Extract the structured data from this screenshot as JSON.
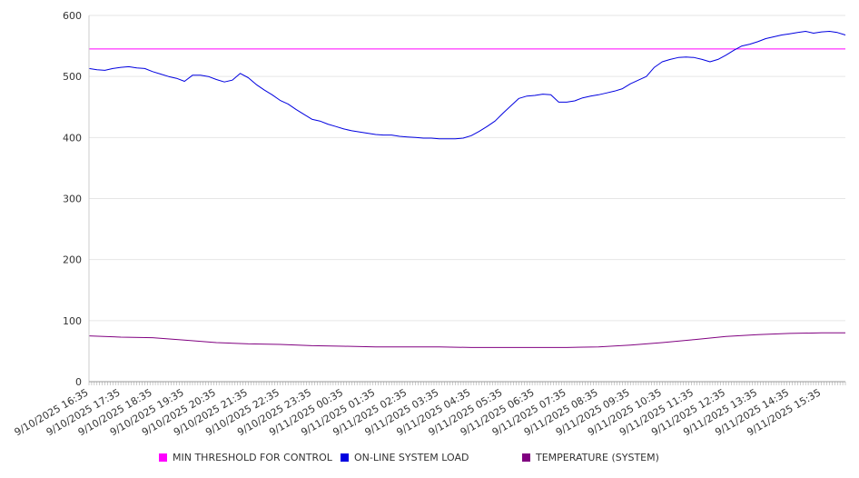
{
  "chart_data": {
    "type": "line",
    "title": "",
    "xlabel": "",
    "ylabel": "",
    "ylim": [
      0,
      600
    ],
    "yticks": [
      "0",
      "100",
      "200",
      "300",
      "400",
      "500",
      "600"
    ],
    "xticks": [
      "9/10/2025 16:35",
      "9/10/2025 17:35",
      "9/10/2025 18:35",
      "9/10/2025 19:35",
      "9/10/2025 20:35",
      "9/10/2025 21:35",
      "9/10/2025 22:35",
      "9/10/2025 23:35",
      "9/11/2025 00:35",
      "9/11/2025 01:35",
      "9/11/2025 02:35",
      "9/11/2025 03:35",
      "9/11/2025 04:35",
      "9/11/2025 05:35",
      "9/11/2025 06:35",
      "9/11/2025 07:35",
      "9/11/2025 08:35",
      "9/11/2025 09:35",
      "9/11/2025 10:35",
      "9/11/2025 11:35",
      "9/11/2025 12:35",
      "9/11/2025 13:35",
      "9/11/2025 14:35",
      "9/11/2025 15:35"
    ],
    "grid": true,
    "legend_position": "bottom",
    "series": [
      {
        "name": "MIN THRESHOLD FOR CONTROL",
        "color": "#ff00ff",
        "x": [
          "9/10/2025 16:35",
          "9/11/2025 16:20"
        ],
        "values": [
          545,
          545
        ]
      },
      {
        "name": "ON-LINE SYSTEM LOAD",
        "color": "#0000e0",
        "x": [
          "9/10/2025 16:35",
          "9/10/2025 16:50",
          "9/10/2025 17:05",
          "9/10/2025 17:20",
          "9/10/2025 17:35",
          "9/10/2025 17:50",
          "9/10/2025 18:05",
          "9/10/2025 18:20",
          "9/10/2025 18:35",
          "9/10/2025 18:50",
          "9/10/2025 19:05",
          "9/10/2025 19:20",
          "9/10/2025 19:35",
          "9/10/2025 19:50",
          "9/10/2025 20:05",
          "9/10/2025 20:20",
          "9/10/2025 20:35",
          "9/10/2025 20:50",
          "9/10/2025 21:05",
          "9/10/2025 21:20",
          "9/10/2025 21:35",
          "9/10/2025 21:50",
          "9/10/2025 22:05",
          "9/10/2025 22:20",
          "9/10/2025 22:35",
          "9/10/2025 22:50",
          "9/10/2025 23:05",
          "9/10/2025 23:20",
          "9/10/2025 23:35",
          "9/10/2025 23:50",
          "9/11/2025 00:05",
          "9/11/2025 00:20",
          "9/11/2025 00:35",
          "9/11/2025 00:50",
          "9/11/2025 01:05",
          "9/11/2025 01:20",
          "9/11/2025 01:35",
          "9/11/2025 01:50",
          "9/11/2025 02:05",
          "9/11/2025 02:20",
          "9/11/2025 02:35",
          "9/11/2025 02:50",
          "9/11/2025 03:05",
          "9/11/2025 03:20",
          "9/11/2025 03:35",
          "9/11/2025 03:50",
          "9/11/2025 04:05",
          "9/11/2025 04:20",
          "9/11/2025 04:35",
          "9/11/2025 04:50",
          "9/11/2025 05:05",
          "9/11/2025 05:20",
          "9/11/2025 05:35",
          "9/11/2025 05:50",
          "9/11/2025 06:05",
          "9/11/2025 06:20",
          "9/11/2025 06:35",
          "9/11/2025 06:50",
          "9/11/2025 07:05",
          "9/11/2025 07:20",
          "9/11/2025 07:35",
          "9/11/2025 07:50",
          "9/11/2025 08:05",
          "9/11/2025 08:20",
          "9/11/2025 08:35",
          "9/11/2025 08:50",
          "9/11/2025 09:05",
          "9/11/2025 09:20",
          "9/11/2025 09:35",
          "9/11/2025 09:50",
          "9/11/2025 10:05",
          "9/11/2025 10:20",
          "9/11/2025 10:35",
          "9/11/2025 10:50",
          "9/11/2025 11:05",
          "9/11/2025 11:20",
          "9/11/2025 11:35",
          "9/11/2025 11:50",
          "9/11/2025 12:05",
          "9/11/2025 12:20",
          "9/11/2025 12:35",
          "9/11/2025 12:50",
          "9/11/2025 13:05",
          "9/11/2025 13:20",
          "9/11/2025 13:35",
          "9/11/2025 13:50",
          "9/11/2025 14:05",
          "9/11/2025 14:20",
          "9/11/2025 14:35",
          "9/11/2025 14:50",
          "9/11/2025 15:05",
          "9/11/2025 15:20",
          "9/11/2025 15:35",
          "9/11/2025 15:50",
          "9/11/2025 16:05",
          "9/11/2025 16:20"
        ],
        "values": [
          513,
          511,
          510,
          513,
          515,
          516,
          514,
          513,
          508,
          504,
          500,
          497,
          492,
          502,
          502,
          500,
          495,
          491,
          494,
          505,
          498,
          487,
          478,
          470,
          461,
          455,
          446,
          438,
          430,
          427,
          422,
          418,
          414,
          411,
          409,
          407,
          405,
          404,
          404,
          402,
          401,
          400,
          399,
          399,
          398,
          398,
          398,
          399,
          403,
          410,
          418,
          427,
          440,
          452,
          464,
          468,
          469,
          471,
          470,
          458,
          458,
          460,
          465,
          468,
          470,
          473,
          476,
          480,
          488,
          494,
          500,
          515,
          524,
          528,
          531,
          532,
          531,
          528,
          524,
          528,
          535,
          543,
          550,
          553,
          557,
          562,
          565,
          568,
          570,
          572,
          574,
          571,
          573,
          574,
          572,
          568
        ]
      },
      {
        "name": "TEMPERATURE (SYSTEM)",
        "color": "#800080",
        "x": [
          "9/10/2025 16:35",
          "9/10/2025 17:35",
          "9/10/2025 18:35",
          "9/10/2025 19:35",
          "9/10/2025 20:35",
          "9/10/2025 21:35",
          "9/10/2025 22:35",
          "9/10/2025 23:35",
          "9/11/2025 00:35",
          "9/11/2025 01:35",
          "9/11/2025 02:35",
          "9/11/2025 03:35",
          "9/11/2025 04:35",
          "9/11/2025 05:35",
          "9/11/2025 06:35",
          "9/11/2025 07:35",
          "9/11/2025 08:35",
          "9/11/2025 09:35",
          "9/11/2025 10:35",
          "9/11/2025 11:35",
          "9/11/2025 12:35",
          "9/11/2025 13:35",
          "9/11/2025 14:35",
          "9/11/2025 15:35",
          "9/11/2025 16:20"
        ],
        "values": [
          75,
          73,
          72,
          68,
          64,
          62,
          61,
          59,
          58,
          57,
          57,
          57,
          56,
          56,
          56,
          56,
          57,
          60,
          64,
          69,
          74,
          77,
          79,
          80,
          80
        ]
      }
    ]
  }
}
